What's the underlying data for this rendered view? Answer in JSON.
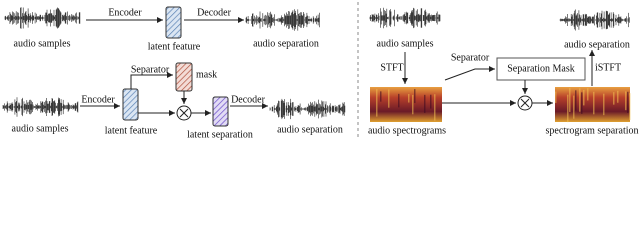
{
  "left_top": {
    "input_label": "audio samples",
    "encoder": "Encoder",
    "latent_label": "latent feature",
    "decoder": "Decoder",
    "output_label": "audio separation"
  },
  "left_bottom": {
    "input_label": "audio samples",
    "encoder": "Encoder",
    "latent_label": "latent feature",
    "separator": "Separator",
    "mask": "mask",
    "latent_separation": "latent separation",
    "decoder": "Decoder",
    "output_label": "audio separation"
  },
  "right": {
    "input_label": "audio samples",
    "stft": "STFT",
    "spectrogram_label": "audio spectrograms",
    "separator": "Separator",
    "mask_box": "Separation Mask",
    "istft": "iSTFT",
    "output_label": "audio separation",
    "separated_spectrogram_label": "spectrogram separation"
  }
}
